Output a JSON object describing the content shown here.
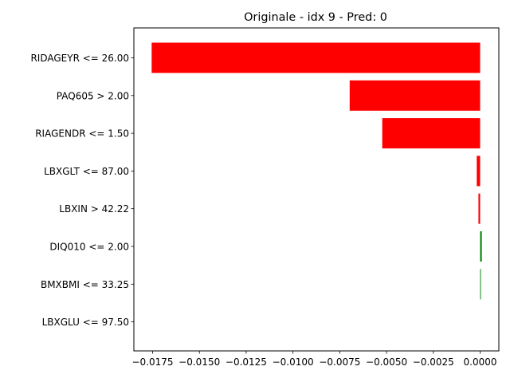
{
  "chart_data": {
    "type": "bar",
    "orientation": "horizontal",
    "title": "Originale - idx 9 - Pred: 0",
    "xlabel": "",
    "ylabel": "",
    "xlim": [
      -0.0185,
      0.001
    ],
    "x_ticks": [
      -0.0175,
      -0.015,
      -0.0125,
      -0.01,
      -0.0075,
      -0.005,
      -0.0025,
      0.0
    ],
    "x_tick_labels": [
      "−0.0175",
      "−0.0150",
      "−0.0125",
      "−0.0100",
      "−0.0075",
      "−0.0050",
      "−0.0025",
      "0.0000"
    ],
    "categories": [
      "RIDAGEYR <= 26.00",
      "PAQ605 > 2.00",
      "RIAGENDR <= 1.50",
      "LBXGLT <= 87.00",
      "LBXIN > 42.22",
      "DIQ010 <= 2.00",
      "BMXBMI <= 33.25",
      "LBXGLU <= 97.50"
    ],
    "values": [
      -0.01755,
      -0.00697,
      -0.00523,
      -0.00018,
      -9e-05,
      9e-05,
      4e-05,
      0.0
    ],
    "colors": {
      "negative": "#ff0000",
      "positive": "#008000",
      "axis": "#000000"
    },
    "grid": false,
    "legend": "none"
  }
}
